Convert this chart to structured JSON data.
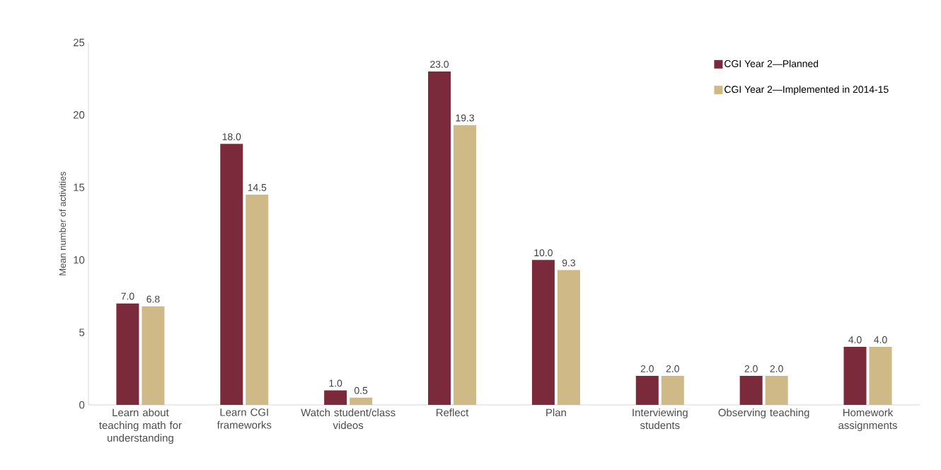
{
  "chart_data": {
    "type": "bar",
    "ylabel": "Mean number of activities",
    "categories": [
      "Learn about teaching math for understanding",
      "Learn CGI frameworks",
      "Watch student/class videos",
      "Reflect",
      "Plan",
      "Interviewing students",
      "Observing teaching",
      "Homework assignments"
    ],
    "series": [
      {
        "name": "CGI Year 2—Planned",
        "color": "#7b2a3b",
        "values": [
          7.0,
          18.0,
          1.0,
          23.0,
          10.0,
          2.0,
          2.0,
          4.0
        ],
        "value_labels": [
          "7.0",
          "18.0",
          "1.0",
          "23.0",
          "10.0",
          "2.0",
          "2.0",
          "4.0"
        ]
      },
      {
        "name": "CGI Year 2—Implemented in 2014-15",
        "color": "#cfb987",
        "values": [
          6.8,
          14.5,
          0.5,
          19.3,
          9.3,
          2.0,
          2.0,
          4.0
        ],
        "value_labels": [
          "6.8",
          "14.5",
          "0.5",
          "19.3",
          "9.3",
          "2.0",
          "2.0",
          "4.0"
        ]
      }
    ],
    "ylim": [
      0,
      25
    ],
    "yticks": [
      0,
      5,
      10,
      15,
      20,
      25
    ],
    "grid": false,
    "legend": "top right"
  }
}
